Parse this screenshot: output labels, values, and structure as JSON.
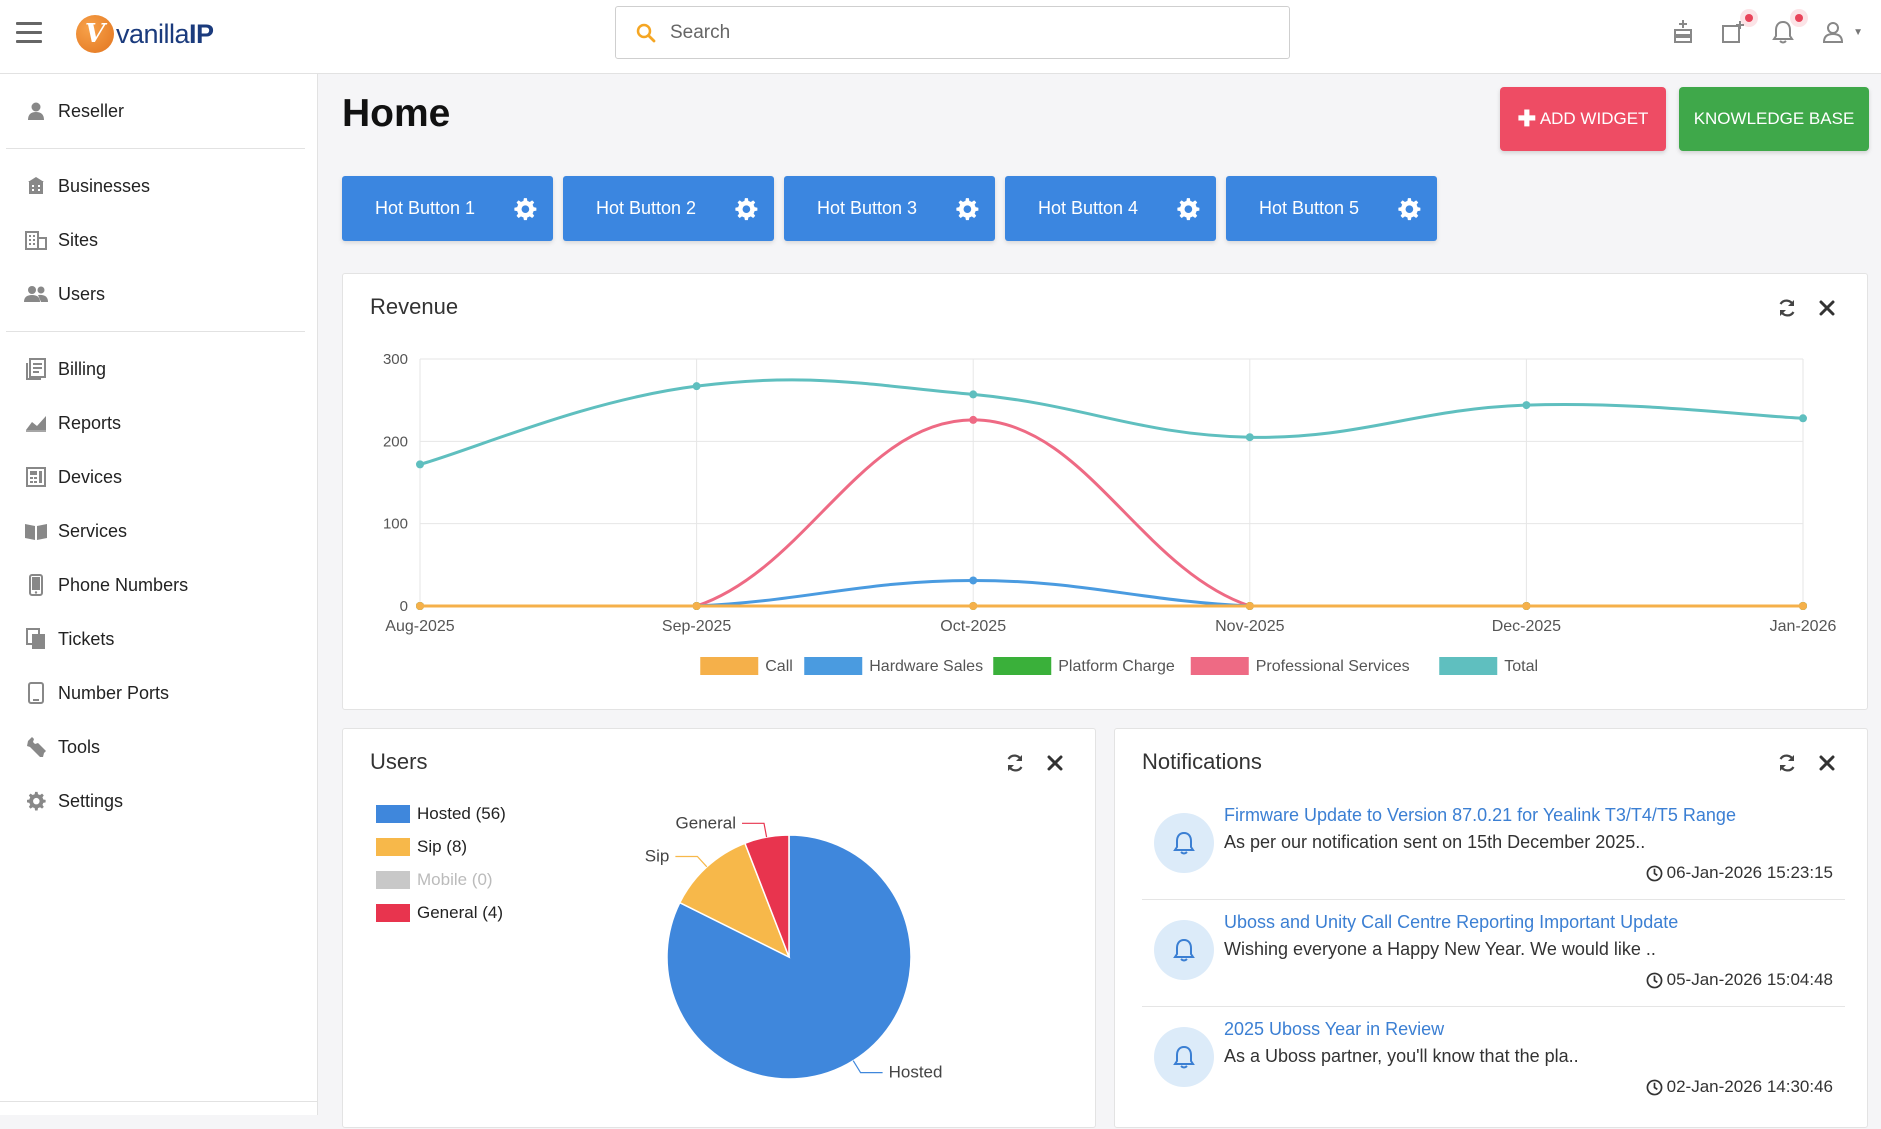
{
  "header": {
    "logo_letter": "V",
    "logo_text_pre": "vanilla",
    "logo_text_bold": "IP",
    "search_placeholder": "Search"
  },
  "sidebar": {
    "group1": [
      {
        "label": "Reseller",
        "icon": "person-icon"
      }
    ],
    "group2": [
      {
        "label": "Businesses",
        "icon": "building-icon"
      },
      {
        "label": "Sites",
        "icon": "sites-icon"
      },
      {
        "label": "Users",
        "icon": "users-icon"
      }
    ],
    "group3": [
      {
        "label": "Billing",
        "icon": "billing-icon"
      },
      {
        "label": "Reports",
        "icon": "reports-icon"
      },
      {
        "label": "Devices",
        "icon": "devices-icon"
      },
      {
        "label": "Services",
        "icon": "services-icon"
      },
      {
        "label": "Phone Numbers",
        "icon": "phone-icon"
      },
      {
        "label": "Tickets",
        "icon": "tickets-icon"
      },
      {
        "label": "Number Ports",
        "icon": "number-ports-icon"
      },
      {
        "label": "Tools",
        "icon": "wrench-icon"
      },
      {
        "label": "Settings",
        "icon": "gear-icon"
      }
    ]
  },
  "main": {
    "title": "Home",
    "add_widget_label": "ADD WIDGET",
    "knowledge_base_label": "KNOWLEDGE BASE",
    "hot_buttons": [
      "Hot Button 1",
      "Hot Button 2",
      "Hot Button 3",
      "Hot Button 4",
      "Hot Button 5"
    ]
  },
  "revenue": {
    "title": "Revenue"
  },
  "chart_data": [
    {
      "type": "line",
      "title": "Revenue",
      "categories": [
        "Aug-2025",
        "Sep-2025",
        "Oct-2025",
        "Nov-2025",
        "Dec-2025",
        "Jan-2026"
      ],
      "ylim": [
        0,
        300
      ],
      "yticks": [
        "0",
        "100",
        "200",
        "300"
      ],
      "series": [
        {
          "name": "Call",
          "color": "#f5b04a",
          "values": [
            0,
            0,
            0,
            0,
            0,
            0
          ]
        },
        {
          "name": "Hardware Sales",
          "color": "#4a9be0",
          "values": [
            0,
            0,
            31,
            0,
            0,
            0
          ]
        },
        {
          "name": "Platform Charge",
          "color": "#3ab03a",
          "values": [
            0,
            0,
            0,
            0,
            0,
            0
          ]
        },
        {
          "name": "Professional Services",
          "color": "#ee6a84",
          "values": [
            0,
            0,
            226,
            0,
            0,
            0
          ]
        },
        {
          "name": "Total",
          "color": "#5fbfbf",
          "values": [
            172,
            267,
            257,
            205,
            244,
            228
          ]
        }
      ]
    },
    {
      "type": "pie",
      "title": "Users",
      "slices": [
        {
          "name": "Hosted",
          "legend": "Hosted (56)",
          "value": 56,
          "color": "#3f87dc",
          "enabled": true
        },
        {
          "name": "Sip",
          "legend": "Sip (8)",
          "value": 8,
          "color": "#f7b84a",
          "enabled": true
        },
        {
          "name": "Mobile",
          "legend": "Mobile (0)",
          "value": 0,
          "color": "#c8c8c8",
          "enabled": false
        },
        {
          "name": "General",
          "legend": "General (4)",
          "value": 4,
          "color": "#e8344e",
          "enabled": true
        }
      ]
    }
  ],
  "users": {
    "title": "Users"
  },
  "notifications": {
    "title": "Notifications",
    "items": [
      {
        "title": "Firmware Update to Version 87.0.21 for Yealink T3/T4/T5 Range",
        "body": "As per our notification sent on 15th December 2025..",
        "time": "06-Jan-2026 15:23:15"
      },
      {
        "title": "Uboss and Unity Call Centre Reporting Important Update",
        "body": "Wishing everyone a Happy New Year. We would like ..",
        "time": "05-Jan-2026 15:04:48"
      },
      {
        "title": "2025 Uboss Year in Review",
        "body": "As a Uboss partner, you'll know that the pla..",
        "time": "02-Jan-2026 14:30:46"
      }
    ]
  },
  "colors": {
    "accent_blue": "#3b86e0",
    "add_red": "#ee4c64",
    "kb_green": "#3fa84a",
    "search_orange": "#f5a623"
  }
}
